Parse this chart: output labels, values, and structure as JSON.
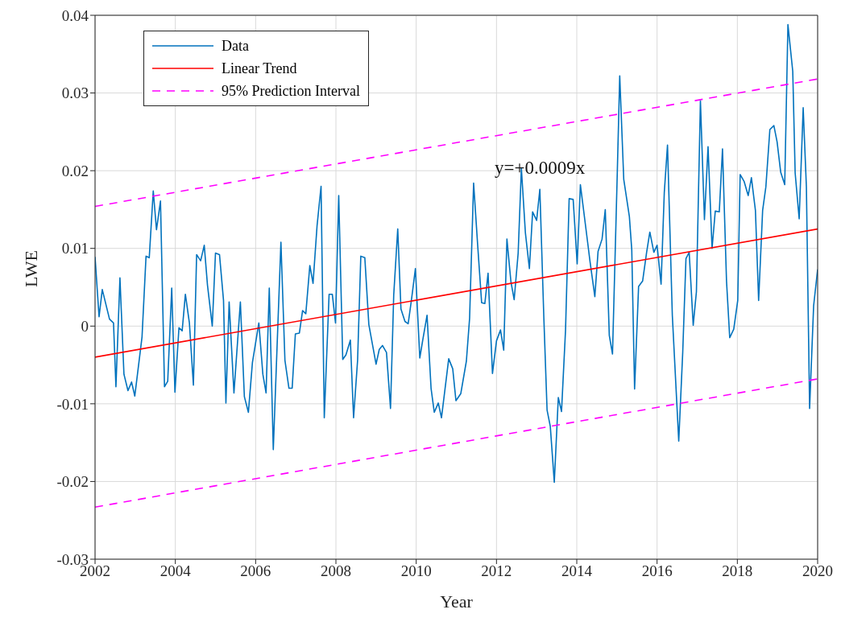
{
  "chart_data": {
    "type": "line",
    "xlabel": "Year",
    "ylabel": "LWE",
    "xlim": [
      2002,
      2020
    ],
    "xticks": [
      2002,
      2004,
      2006,
      2008,
      2010,
      2012,
      2014,
      2016,
      2018,
      2020
    ],
    "ylim": [
      -0.03,
      0.04
    ],
    "yticks": [
      -0.03,
      -0.02,
      -0.01,
      0,
      0.01,
      0.02,
      0.03,
      0.04
    ],
    "grid": true,
    "legend": "top left",
    "marker": "none",
    "annotations": [
      "y=+0.0009x"
    ],
    "series": [
      {
        "name": "Data",
        "color": "#0072bd",
        "line_style": "solid",
        "x": [
          2002.0,
          2002.1,
          2002.18,
          2002.36,
          2002.46,
          2002.52,
          2002.62,
          2002.72,
          2002.82,
          2002.91,
          2002.99,
          2003.17,
          2003.27,
          2003.35,
          2003.45,
          2003.53,
          2003.63,
          2003.73,
          2003.81,
          2003.91,
          2003.99,
          2004.09,
          2004.17,
          2004.25,
          2004.35,
          2004.45,
          2004.53,
          2004.63,
          2004.72,
          2004.8,
          2004.92,
          2005.0,
          2005.1,
          2005.2,
          2005.26,
          2005.34,
          2005.46,
          2005.62,
          2005.72,
          2005.82,
          2005.92,
          2006.08,
          2006.18,
          2006.26,
          2006.34,
          2006.44,
          2006.63,
          2006.73,
          2006.83,
          2006.91,
          2006.99,
          2007.09,
          2007.17,
          2007.25,
          2007.35,
          2007.43,
          2007.53,
          2007.63,
          2007.71,
          2007.83,
          2007.91,
          2007.99,
          2008.07,
          2008.17,
          2008.25,
          2008.36,
          2008.44,
          2008.54,
          2008.62,
          2008.72,
          2008.82,
          2009.0,
          2009.08,
          2009.16,
          2009.26,
          2009.36,
          2009.44,
          2009.54,
          2009.62,
          2009.72,
          2009.8,
          2009.88,
          2009.98,
          2010.09,
          2010.17,
          2010.27,
          2010.37,
          2010.45,
          2010.55,
          2010.63,
          2010.81,
          2010.91,
          2010.99,
          2011.11,
          2011.25,
          2011.33,
          2011.43,
          2011.53,
          2011.63,
          2011.71,
          2011.79,
          2011.9,
          2012.0,
          2012.1,
          2012.18,
          2012.26,
          2012.36,
          2012.44,
          2012.54,
          2012.62,
          2012.72,
          2012.82,
          2012.9,
          2013.0,
          2013.08,
          2013.18,
          2013.26,
          2013.34,
          2013.44,
          2013.54,
          2013.62,
          2013.72,
          2013.81,
          2013.91,
          2014.01,
          2014.09,
          2014.27,
          2014.33,
          2014.45,
          2014.53,
          2014.63,
          2014.71,
          2014.81,
          2014.89,
          2015.01,
          2015.07,
          2015.17,
          2015.31,
          2015.37,
          2015.44,
          2015.54,
          2015.64,
          2015.74,
          2015.82,
          2015.92,
          2016.0,
          2016.1,
          2016.18,
          2016.26,
          2016.38,
          2016.54,
          2016.64,
          2016.72,
          2016.8,
          2016.9,
          2016.98,
          2017.08,
          2017.18,
          2017.27,
          2017.37,
          2017.45,
          2017.55,
          2017.63,
          2017.73,
          2017.81,
          2017.91,
          2018.01,
          2018.07,
          2018.17,
          2018.27,
          2018.35,
          2018.45,
          2018.53,
          2018.63,
          2018.71,
          2018.81,
          2018.91,
          2018.99,
          2019.08,
          2019.18,
          2019.26,
          2019.38,
          2019.44,
          2019.54,
          2019.64,
          2019.72,
          2019.8,
          2019.9,
          2020.0
        ],
        "values": [
          0.0089,
          0.0012,
          0.0047,
          0.0009,
          0.0004,
          -0.0078,
          0.0062,
          -0.0062,
          -0.0083,
          -0.0072,
          -0.009,
          -0.0014,
          0.009,
          0.0088,
          0.0174,
          0.0124,
          0.0161,
          -0.0078,
          -0.0071,
          0.0049,
          -0.0085,
          -0.0002,
          -0.0006,
          0.0041,
          0.0004,
          -0.0076,
          0.0092,
          0.0084,
          0.0104,
          0.0053,
          0.0,
          0.0094,
          0.0092,
          0.0033,
          -0.0099,
          0.0031,
          -0.0086,
          0.0031,
          -0.0091,
          -0.0111,
          -0.0047,
          0.0004,
          -0.0062,
          -0.0086,
          0.0049,
          -0.0159,
          0.0108,
          -0.0044,
          -0.008,
          -0.008,
          -0.001,
          -0.0009,
          0.002,
          0.0016,
          0.0078,
          0.0055,
          0.0129,
          0.018,
          -0.0118,
          0.0041,
          0.0041,
          0.0004,
          0.0168,
          -0.0043,
          -0.0037,
          -0.0018,
          -0.0118,
          -0.0044,
          0.009,
          0.0088,
          0.0002,
          -0.0049,
          -0.003,
          -0.0025,
          -0.0034,
          -0.0106,
          0.004,
          0.0125,
          0.0022,
          0.0006,
          0.0003,
          0.0033,
          0.0074,
          -0.0041,
          -0.0016,
          0.0014,
          -0.008,
          -0.0111,
          -0.0099,
          -0.0118,
          -0.0042,
          -0.0055,
          -0.0096,
          -0.0087,
          -0.0045,
          0.001,
          0.0184,
          0.0105,
          0.003,
          0.0029,
          0.0068,
          -0.0061,
          -0.0019,
          -0.0005,
          -0.0031,
          0.0112,
          0.0057,
          0.0034,
          0.0094,
          0.0203,
          0.012,
          0.0074,
          0.0147,
          0.0136,
          0.0176,
          0.001,
          -0.0108,
          -0.0129,
          -0.0201,
          -0.0092,
          -0.011,
          -0.0005,
          0.0164,
          0.0163,
          0.008,
          0.0182,
          0.0108,
          0.0083,
          0.0038,
          0.0096,
          0.0112,
          0.015,
          -0.0012,
          -0.0036,
          0.0199,
          0.0322,
          0.0189,
          0.0141,
          0.0098,
          -0.0081,
          0.0051,
          0.0058,
          0.0095,
          0.0121,
          0.0095,
          0.0104,
          0.0054,
          0.0172,
          0.0233,
          0.0014,
          -0.0148,
          -0.0033,
          0.0087,
          0.0095,
          0.0001,
          0.0044,
          0.029,
          0.0137,
          0.0231,
          0.01,
          0.0148,
          0.0147,
          0.0228,
          0.0058,
          -0.0015,
          -0.0004,
          0.0033,
          0.0195,
          0.0186,
          0.0168,
          0.0191,
          0.0149,
          0.0033,
          0.0149,
          0.0179,
          0.0253,
          0.0258,
          0.0237,
          0.0198,
          0.0182,
          0.0388,
          0.0328,
          0.0197,
          0.0138,
          0.0281,
          0.0179,
          -0.0106,
          0.0026,
          0.0073
        ]
      },
      {
        "name": "Linear Trend",
        "color": "#ff0000",
        "line_style": "solid",
        "x": [
          2002,
          2020
        ],
        "values": [
          -0.004,
          0.0125
        ]
      },
      {
        "name": "95% Prediction Interval",
        "color": "#ff00ff",
        "line_style": "dashed",
        "x": [
          2002,
          2020
        ],
        "values": [
          0.0154,
          0.0318
        ]
      },
      {
        "color": "#ff00ff",
        "line_style": "dashed",
        "x": [
          2002,
          2020
        ],
        "values": [
          -0.0233,
          -0.0068
        ]
      }
    ]
  }
}
